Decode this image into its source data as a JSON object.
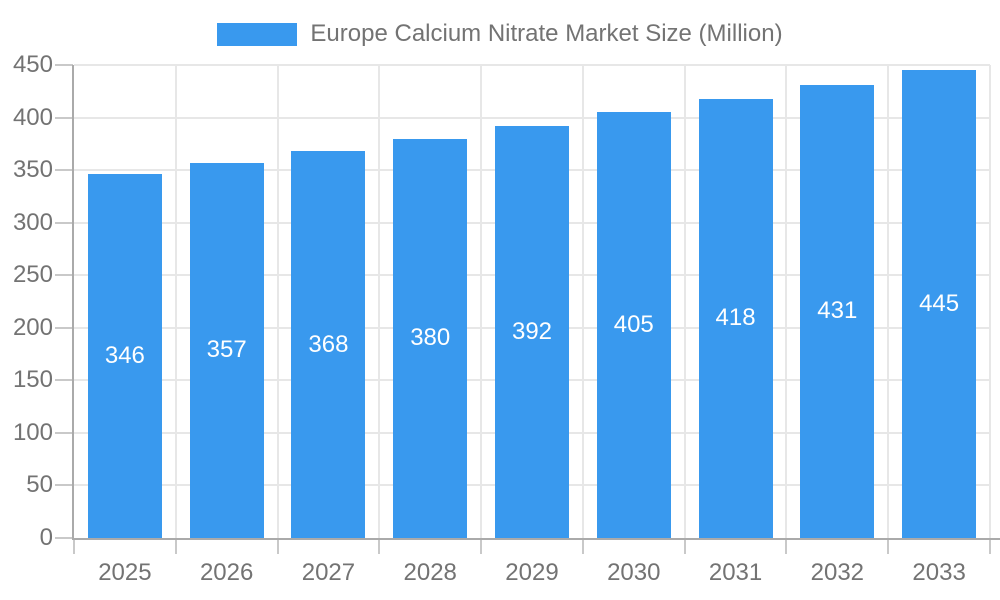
{
  "legend": {
    "label": "Europe Calcium Nitrate Market Size (Million)"
  },
  "colors": {
    "bar": "#3999EE",
    "axis": "#AAAAAA",
    "tick": "#C9C9C9",
    "grid": "#E7E7E7",
    "axis_text": "#737373",
    "bar_label_text": "#FFFFFF",
    "background": "#FFFFFF"
  },
  "chart_data": {
    "type": "bar",
    "title": "",
    "legend_entries": [
      "Europe Calcium Nitrate Market Size (Million)"
    ],
    "legend_position": "top-center",
    "categories": [
      "2025",
      "2026",
      "2027",
      "2028",
      "2029",
      "2030",
      "2031",
      "2032",
      "2033"
    ],
    "values": [
      346,
      357,
      368,
      380,
      392,
      405,
      418,
      431,
      445
    ],
    "value_labels_position": "inside-center",
    "xlabel": "",
    "ylabel": "",
    "ylim": [
      0,
      450
    ],
    "yticks": [
      0,
      50,
      100,
      150,
      200,
      250,
      300,
      350,
      400,
      450
    ],
    "grid": true
  }
}
